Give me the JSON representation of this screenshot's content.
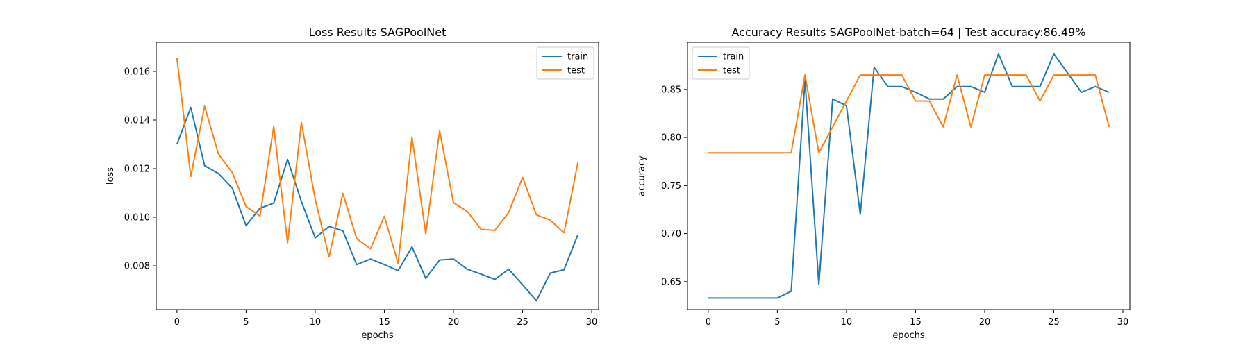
{
  "chart_data": [
    {
      "type": "line",
      "title": "Loss Results SAGPoolNet",
      "xlabel": "epochs",
      "ylabel": "loss",
      "xlim": [
        -1.5,
        30.5
      ],
      "ylim": [
        0.0062,
        0.0172
      ],
      "xticks": [
        0,
        5,
        10,
        15,
        20,
        25,
        30
      ],
      "yticks": [
        0.008,
        0.01,
        0.012,
        0.014,
        0.016
      ],
      "ytick_labels": [
        "0.008",
        "0.010",
        "0.012",
        "0.014",
        "0.016"
      ],
      "legend_position": "top-right",
      "x": [
        0,
        1,
        2,
        3,
        4,
        5,
        6,
        7,
        8,
        9,
        10,
        11,
        12,
        13,
        14,
        15,
        16,
        17,
        18,
        19,
        20,
        21,
        22,
        23,
        24,
        25,
        26,
        27,
        28,
        29
      ],
      "series": [
        {
          "name": "train",
          "color": "#1f77b4",
          "values": [
            0.013,
            0.01452,
            0.01212,
            0.0118,
            0.0112,
            0.00965,
            0.01037,
            0.01058,
            0.01238,
            0.01065,
            0.00915,
            0.00962,
            0.00944,
            0.00805,
            0.00828,
            0.00805,
            0.0078,
            0.00878,
            0.00748,
            0.00824,
            0.00828,
            0.00786,
            0.00766,
            0.00744,
            0.00786,
            0.00722,
            0.00656,
            0.0077,
            0.00784,
            0.00928
          ]
        },
        {
          "name": "test",
          "color": "#ff7f0e",
          "values": [
            0.01655,
            0.01168,
            0.01457,
            0.0126,
            0.01184,
            0.01044,
            0.01005,
            0.01374,
            0.00895,
            0.0139,
            0.01074,
            0.00836,
            0.01098,
            0.00912,
            0.0087,
            0.01004,
            0.0081,
            0.0133,
            0.00932,
            0.01356,
            0.0106,
            0.01024,
            0.0095,
            0.00946,
            0.0102,
            0.01164,
            0.0101,
            0.00988,
            0.00936,
            0.01225
          ]
        }
      ]
    },
    {
      "type": "line",
      "title": "Accuracy Results SAGPoolNet-batch=64 | Test accuracy:86.49%",
      "xlabel": "epochs",
      "ylabel": "accuracy",
      "xlim": [
        -1.5,
        30.5
      ],
      "ylim": [
        0.621,
        0.899
      ],
      "xticks": [
        0,
        5,
        10,
        15,
        20,
        25,
        30
      ],
      "yticks": [
        0.65,
        0.7,
        0.75,
        0.8,
        0.85
      ],
      "ytick_labels": [
        "0.65",
        "0.70",
        "0.75",
        "0.80",
        "0.85"
      ],
      "legend_position": "top-left",
      "x": [
        0,
        1,
        2,
        3,
        4,
        5,
        6,
        7,
        8,
        9,
        10,
        11,
        12,
        13,
        14,
        15,
        16,
        17,
        18,
        19,
        20,
        21,
        22,
        23,
        24,
        25,
        26,
        27,
        28,
        29
      ],
      "series": [
        {
          "name": "train",
          "color": "#1f77b4",
          "values": [
            0.633,
            0.633,
            0.633,
            0.633,
            0.633,
            0.633,
            0.64,
            0.86,
            0.647,
            0.84,
            0.833,
            0.72,
            0.873,
            0.853,
            0.853,
            0.847,
            0.84,
            0.84,
            0.853,
            0.853,
            0.847,
            0.887,
            0.853,
            0.853,
            0.853,
            0.887,
            0.867,
            0.847,
            0.853,
            0.847
          ]
        },
        {
          "name": "test",
          "color": "#ff7f0e",
          "values": [
            0.784,
            0.784,
            0.784,
            0.784,
            0.784,
            0.784,
            0.784,
            0.865,
            0.784,
            0.811,
            0.838,
            0.865,
            0.865,
            0.865,
            0.865,
            0.838,
            0.838,
            0.811,
            0.865,
            0.811,
            0.865,
            0.865,
            0.865,
            0.865,
            0.838,
            0.865,
            0.865,
            0.865,
            0.865,
            0.811
          ]
        }
      ]
    }
  ]
}
